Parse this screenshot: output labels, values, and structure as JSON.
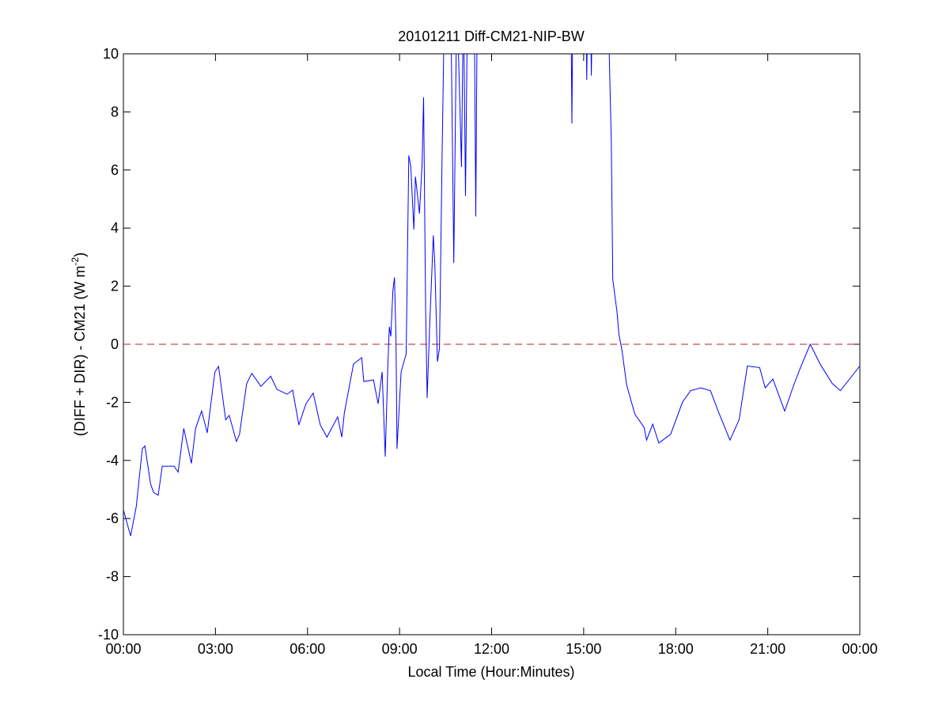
{
  "chart_data": {
    "type": "line",
    "title": "20101211 Diff-CM21-NIP-BW",
    "xlabel": "Local Time (Hour:Minutes)",
    "ylabel_main": "(DIFF + DIR) - CM21 (W m",
    "ylabel_sup": "-2",
    "ylabel_end": ")",
    "xlim": [
      "00:00",
      "24:00"
    ],
    "ylim": [
      -10,
      10
    ],
    "grid": false,
    "x_ticks": [
      "00:00",
      "03:00",
      "06:00",
      "09:00",
      "12:00",
      "15:00",
      "18:00",
      "21:00",
      "00:00"
    ],
    "y_ticks": [
      "-10",
      "-8",
      "-6",
      "-4",
      "-2",
      "0",
      "2",
      "4",
      "6",
      "8",
      "10"
    ],
    "reference_line": {
      "y": 0,
      "color": "#b22222",
      "style": "dashed"
    },
    "series": [
      {
        "color": "#0000ff",
        "points": [
          [
            "00:00",
            -5.7
          ],
          [
            "00:14",
            -6.6
          ],
          [
            "00:25",
            -5.6
          ],
          [
            "00:37",
            -3.6
          ],
          [
            "00:42",
            -3.5
          ],
          [
            "00:53",
            -4.8
          ],
          [
            "00:59",
            -5.1
          ],
          [
            "01:08",
            -5.2
          ],
          [
            "01:16",
            -4.2
          ],
          [
            "01:27",
            -4.2
          ],
          [
            "01:39",
            -4.2
          ],
          [
            "01:47",
            -4.4
          ],
          [
            "01:58",
            -2.9
          ],
          [
            "02:13",
            -4.1
          ],
          [
            "02:21",
            -2.9
          ],
          [
            "02:33",
            -2.3
          ],
          [
            "02:44",
            -3.05
          ],
          [
            "02:59",
            -0.95
          ],
          [
            "03:06",
            -0.76
          ],
          [
            "03:20",
            -2.6
          ],
          [
            "03:27",
            -2.45
          ],
          [
            "03:41",
            -3.35
          ],
          [
            "03:47",
            -3.1
          ],
          [
            "04:01",
            -1.36
          ],
          [
            "04:11",
            -1.0
          ],
          [
            "04:29",
            -1.45
          ],
          [
            "04:48",
            -1.1
          ],
          [
            "05:00",
            -1.55
          ],
          [
            "05:20",
            -1.72
          ],
          [
            "05:31",
            -1.58
          ],
          [
            "05:43",
            -2.78
          ],
          [
            "05:57",
            -2.05
          ],
          [
            "06:11",
            -1.68
          ],
          [
            "06:25",
            -2.78
          ],
          [
            "06:38",
            -3.2
          ],
          [
            "06:59",
            -2.5
          ],
          [
            "07:07",
            -3.2
          ],
          [
            "07:12",
            -2.37
          ],
          [
            "07:30",
            -0.68
          ],
          [
            "07:46",
            -0.46
          ],
          [
            "07:50",
            -1.28
          ],
          [
            "08:09",
            -1.23
          ],
          [
            "08:18",
            -2.05
          ],
          [
            "08:26",
            -0.95
          ],
          [
            "08:32",
            -3.87
          ],
          [
            "08:37",
            -0.76
          ],
          [
            "08:40",
            0.6
          ],
          [
            "08:43",
            0.27
          ],
          [
            "08:47",
            1.85
          ],
          [
            "08:50",
            2.3
          ],
          [
            "08:53",
            0.2
          ],
          [
            "08:55",
            -3.6
          ],
          [
            "09:03",
            -0.95
          ],
          [
            "09:13",
            -0.33
          ],
          [
            "09:18",
            6.5
          ],
          [
            "09:22",
            6.13
          ],
          [
            "09:28",
            3.95
          ],
          [
            "09:31",
            5.77
          ],
          [
            "09:39",
            4.5
          ],
          [
            "09:44",
            6.2
          ],
          [
            "09:47",
            8.5
          ],
          [
            "09:51",
            1.2
          ],
          [
            "09:54",
            -1.85
          ],
          [
            "09:59",
            0.7
          ],
          [
            "10:06",
            3.75
          ],
          [
            "10:09",
            2.78
          ],
          [
            "10:14",
            -0.6
          ],
          [
            "10:18",
            -0.14
          ],
          [
            "10:23",
            6.3
          ],
          [
            "10:28",
            12
          ],
          [
            "10:40",
            12
          ],
          [
            "10:46",
            2.8
          ],
          [
            "10:52",
            12
          ],
          [
            "10:57",
            8.85
          ],
          [
            "11:01",
            6.1
          ],
          [
            "11:05",
            12
          ],
          [
            "11:09",
            5.1
          ],
          [
            "11:13",
            12
          ],
          [
            "11:26",
            12
          ],
          [
            "11:29",
            4.4
          ],
          [
            "11:32",
            12
          ],
          [
            "14:35",
            12
          ],
          [
            "14:37",
            7.6
          ],
          [
            "14:39",
            12
          ],
          [
            "15:04",
            12
          ],
          [
            "15:06",
            9.1
          ],
          [
            "15:08",
            12
          ],
          [
            "15:13",
            12
          ],
          [
            "15:15",
            9.25
          ],
          [
            "15:17",
            12
          ],
          [
            "15:50",
            10
          ],
          [
            "15:54",
            7.0
          ],
          [
            "15:57",
            2.23
          ],
          [
            "16:05",
            1.14
          ],
          [
            "16:09",
            0.33
          ],
          [
            "16:15",
            -0.22
          ],
          [
            "16:24",
            -1.4
          ],
          [
            "16:40",
            -2.4
          ],
          [
            "16:58",
            -2.86
          ],
          [
            "17:03",
            -3.3
          ],
          [
            "17:15",
            -2.75
          ],
          [
            "17:27",
            -3.4
          ],
          [
            "17:50",
            -3.1
          ],
          [
            "18:13",
            -2.0
          ],
          [
            "18:29",
            -1.6
          ],
          [
            "18:49",
            -1.5
          ],
          [
            "19:08",
            -1.6
          ],
          [
            "19:23",
            -2.3
          ],
          [
            "19:46",
            -3.3
          ],
          [
            "20:04",
            -2.6
          ],
          [
            "20:20",
            -0.75
          ],
          [
            "20:44",
            -0.8
          ],
          [
            "20:55",
            -1.5
          ],
          [
            "21:10",
            -1.2
          ],
          [
            "21:33",
            -2.3
          ],
          [
            "21:52",
            -1.35
          ],
          [
            "22:04",
            -0.8
          ],
          [
            "22:23",
            0.0
          ],
          [
            "22:43",
            -0.7
          ],
          [
            "23:06",
            -1.35
          ],
          [
            "23:22",
            -1.6
          ],
          [
            "24:00",
            -0.75
          ]
        ]
      }
    ]
  }
}
